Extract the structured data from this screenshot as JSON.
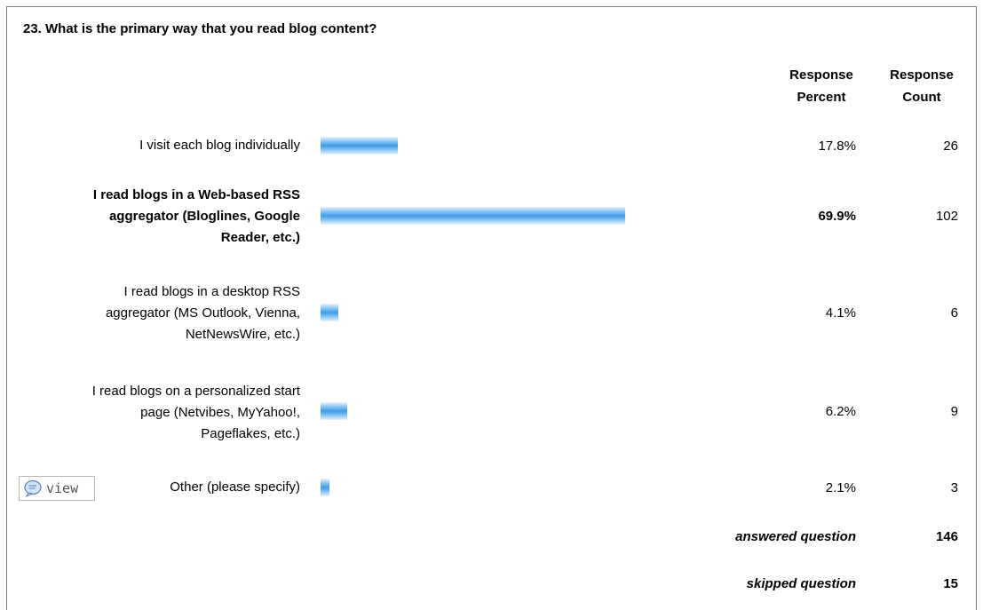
{
  "question": {
    "title": "23. What is the primary way that you read blog content?"
  },
  "headers": {
    "percent_line1": "Response",
    "percent_line2": "Percent",
    "count_line1": "Response",
    "count_line2": "Count"
  },
  "rows": [
    {
      "label_lines": [
        "I visit each blog individually"
      ],
      "percent_text": "17.8%",
      "percent": 17.8,
      "count": "26",
      "bold": false
    },
    {
      "label_lines": [
        "I read blogs in a Web-based RSS",
        "aggregator (Bloglines, Google",
        "Reader, etc.)"
      ],
      "percent_text": "69.9%",
      "percent": 69.9,
      "count": "102",
      "bold": true
    },
    {
      "label_lines": [
        "I read blogs in a desktop RSS",
        "aggregator (MS Outlook, Vienna,",
        "NetNewsWire, etc.)"
      ],
      "percent_text": "4.1%",
      "percent": 4.1,
      "count": "6",
      "bold": false
    },
    {
      "label_lines": [
        "I read blogs on a personalized start",
        "page (Netvibes, MyYahoo!,",
        "Pageflakes, etc.)"
      ],
      "percent_text": "6.2%",
      "percent": 6.2,
      "count": "9",
      "bold": false
    },
    {
      "label_lines": [
        "Other (please specify)"
      ],
      "percent_text": "2.1%",
      "percent": 2.1,
      "count": "3",
      "bold": false
    }
  ],
  "view_button": {
    "label": "view",
    "icon": "speech-bubble-icon"
  },
  "summary": {
    "answered_label": "answered question",
    "answered_value": "146",
    "skipped_label": "skipped question",
    "skipped_value": "15"
  },
  "colors": {
    "bar": "#3f9be8",
    "border": "#7f7f7f"
  }
}
